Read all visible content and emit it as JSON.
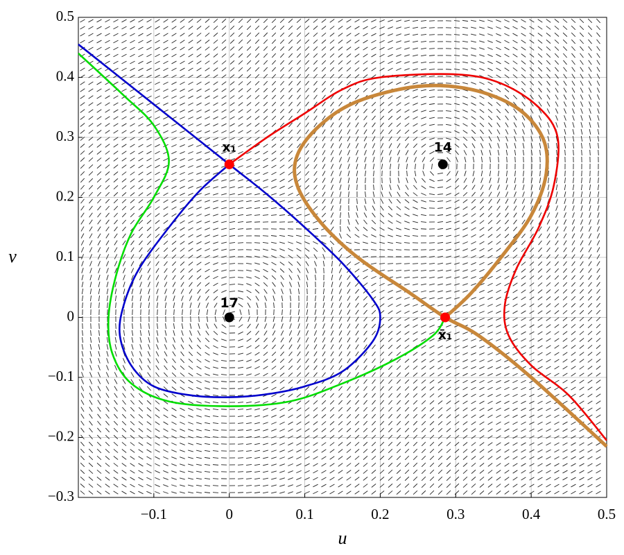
{
  "chart_data": {
    "type": "phase-portrait",
    "x_label": "u",
    "y_label": "v",
    "xlim": [
      -0.2,
      0.5
    ],
    "ylim": [
      -0.3,
      0.5
    ],
    "xticks": [
      {
        "value": -0.1,
        "label": "−0.1"
      },
      0,
      0.1,
      0.2,
      0.3,
      0.4,
      0.5
    ],
    "yticks": [
      {
        "value": -0.3,
        "label": "−0.3"
      },
      {
        "value": -0.2,
        "label": "−0.2"
      },
      {
        "value": -0.1,
        "label": "−0.1"
      },
      0,
      0.1,
      0.2,
      0.3,
      0.4,
      0.5
    ],
    "grid": true,
    "direction_field": true,
    "series": [
      {
        "color": "#0000cc",
        "x": [
          -0.2,
          -0.1,
          0,
          0.05,
          0.1,
          0.15,
          0.19,
          0.2,
          0.19,
          0.15,
          0.1,
          0.05,
          0,
          -0.05,
          -0.1,
          -0.13,
          -0.145,
          -0.14,
          -0.12,
          -0.08,
          -0.04,
          0
        ],
        "y": [
          0.455,
          0.355,
          0.255,
          0.205,
          0.15,
          0.09,
          0.03,
          0,
          -0.04,
          -0.09,
          -0.115,
          -0.128,
          -0.133,
          -0.13,
          -0.115,
          -0.08,
          -0.03,
          0.02,
          0.08,
          0.15,
          0.21,
          0.255
        ]
      },
      {
        "color": "#00dd00",
        "x": [
          -0.2,
          -0.14,
          -0.1,
          -0.08,
          -0.1,
          -0.13,
          -0.15,
          -0.16,
          -0.155,
          -0.13,
          -0.08,
          0,
          0.08,
          0.15,
          0.22,
          0.27,
          0.286
        ],
        "y": [
          0.44,
          0.37,
          0.32,
          0.26,
          0.2,
          0.14,
          0.07,
          0,
          -0.06,
          -0.11,
          -0.14,
          -0.148,
          -0.14,
          -0.11,
          -0.07,
          -0.03,
          0
        ]
      },
      {
        "color": "#ee0000",
        "x": [
          0,
          0.05,
          0.1,
          0.15,
          0.2,
          0.3,
          0.36,
          0.41,
          0.435,
          0.43,
          0.41,
          0.38,
          0.365,
          0.37,
          0.4,
          0.45,
          0.5
        ],
        "y": [
          0.255,
          0.3,
          0.34,
          0.38,
          0.4,
          0.405,
          0.39,
          0.35,
          0.3,
          0.22,
          0.15,
          0.08,
          0.02,
          -0.03,
          -0.08,
          -0.13,
          -0.205
        ]
      },
      {
        "color": "#c8873a",
        "x": [
          0.5,
          0.4,
          0.33,
          0.286,
          0.24,
          0.17,
          0.12,
          0.09,
          0.09,
          0.12,
          0.17,
          0.25,
          0.32,
          0.38,
          0.415,
          0.42,
          0.4,
          0.36,
          0.32,
          0.286
        ],
        "y": [
          -0.215,
          -0.1,
          -0.03,
          0,
          0.04,
          0.1,
          0.16,
          0.22,
          0.27,
          0.32,
          0.36,
          0.385,
          0.38,
          0.35,
          0.3,
          0.24,
          0.17,
          0.1,
          0.04,
          0
        ]
      }
    ],
    "points": [
      {
        "label": "x₁",
        "x": 0,
        "y": 0.255,
        "color": "#ff0000"
      },
      {
        "label": "x̄₁",
        "x": 0.286,
        "y": 0,
        "color": "#ff0000"
      },
      {
        "label": "17",
        "x": 0,
        "y": 0,
        "color": "#000000"
      },
      {
        "label": "14",
        "x": 0.283,
        "y": 0.255,
        "color": "#000000"
      }
    ]
  }
}
